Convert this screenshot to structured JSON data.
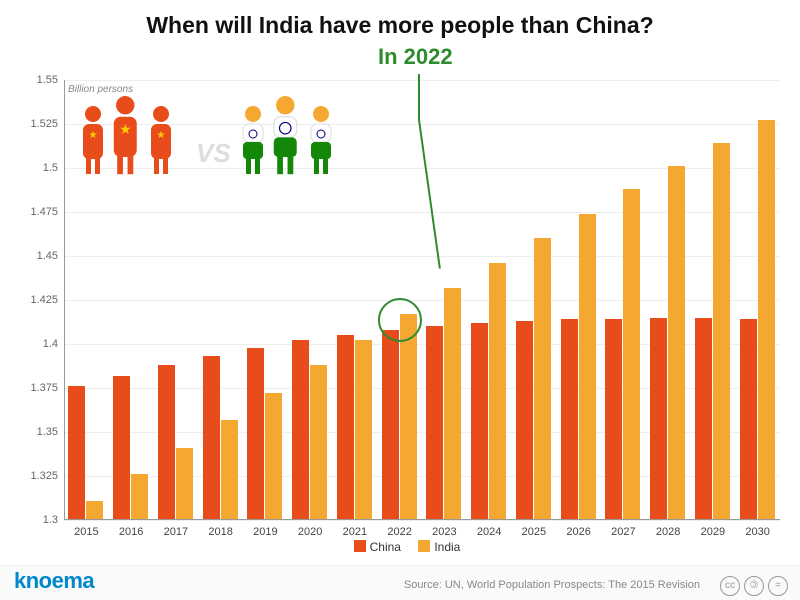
{
  "title": "When will India have more people than China?",
  "callout_label": "In 2022",
  "callout_color": "#2e8b2e",
  "chart": {
    "type": "bar",
    "ylabel": "Billion\npersons",
    "ymin": 1.3,
    "ymax": 1.55,
    "ytick_step": 0.025,
    "yticks": [
      "1.3",
      "1.325",
      "1.35",
      "1.375",
      "1.4",
      "1.425",
      "1.45",
      "1.475",
      "1.5",
      "1.525",
      "1.55"
    ],
    "categories": [
      "2015",
      "2016",
      "2017",
      "2018",
      "2019",
      "2020",
      "2021",
      "2022",
      "2023",
      "2024",
      "2025",
      "2026",
      "2027",
      "2028",
      "2029",
      "2030"
    ],
    "series": [
      {
        "name": "China",
        "color": "#e84c1a",
        "values": [
          1.376,
          1.382,
          1.388,
          1.393,
          1.398,
          1.402,
          1.405,
          1.408,
          1.41,
          1.412,
          1.413,
          1.414,
          1.414,
          1.415,
          1.415,
          1.414
        ]
      },
      {
        "name": "India",
        "color": "#f4a832",
        "values": [
          1.311,
          1.326,
          1.341,
          1.357,
          1.372,
          1.388,
          1.402,
          1.417,
          1.432,
          1.446,
          1.46,
          1.474,
          1.488,
          1.501,
          1.514,
          1.527
        ]
      }
    ],
    "highlight_category": "2022",
    "grid_color": "#eeeeee",
    "axis_color": "#999999",
    "label_fontsize": 11,
    "bar_group_width": 0.8,
    "pictogram": {
      "china_color": "#e84c1a",
      "china_star": "#ffcc00",
      "india_head": "#f4a832",
      "india_body_top": "#ffffff",
      "india_body_bottom": "#138808",
      "india_chakra": "#000080",
      "vs_text": "VS"
    }
  },
  "legend": {
    "items": [
      {
        "label": "China",
        "color": "#e84c1a"
      },
      {
        "label": "India",
        "color": "#f4a832"
      }
    ]
  },
  "footer": {
    "brand": "knoema",
    "brand_color": "#0088cc",
    "source": "Source: UN, World Population Prospects: The 2015 Revision",
    "licence_glyphs": [
      "cc",
      "🄯",
      "="
    ]
  }
}
